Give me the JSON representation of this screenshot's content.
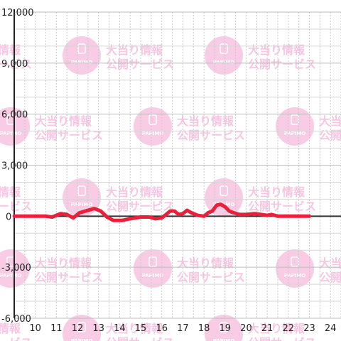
{
  "chart_data": {
    "type": "line",
    "title": "",
    "xlabel": "",
    "ylabel": "",
    "ylim": [
      -6000,
      12000
    ],
    "xlim": [
      9.0,
      24.5
    ],
    "y_ticks": [
      -6000,
      -3000,
      0,
      3000,
      6000,
      9000,
      12000
    ],
    "y_tick_labels": [
      "-6,000",
      "-3,000",
      "0",
      "3,000",
      "6,000",
      "9,000",
      "12,000"
    ],
    "x_ticks": [
      10,
      11,
      12,
      13,
      14,
      15,
      16,
      17,
      18,
      19,
      20,
      21,
      22,
      23,
      24
    ],
    "x_tick_labels": [
      "10",
      "11",
      "12",
      "13",
      "14",
      "15",
      "16",
      "17",
      "18",
      "19",
      "20",
      "21",
      "22",
      "23",
      "24"
    ],
    "grid": true,
    "legend": "none",
    "series": [
      {
        "color": "#e8203a",
        "x": [
          9.0,
          10.5,
          10.8,
          11.2,
          11.5,
          11.8,
          12.1,
          12.5,
          12.8,
          13.1,
          13.4,
          13.7,
          14.1,
          14.5,
          15.0,
          15.4,
          15.7,
          16.0,
          16.2,
          16.4,
          16.6,
          16.8,
          17.0,
          17.2,
          17.4,
          17.7,
          18.0,
          18.2,
          18.4,
          18.6,
          18.8,
          19.0,
          19.2,
          19.4,
          19.7,
          20.0,
          20.4,
          20.7,
          21.0,
          21.2,
          21.5,
          22.0,
          22.5,
          23.0
        ],
        "y": [
          0,
          0,
          -50,
          150,
          100,
          -100,
          200,
          350,
          450,
          300,
          -50,
          -250,
          -250,
          -150,
          -50,
          -50,
          -150,
          -100,
          100,
          300,
          300,
          100,
          150,
          350,
          200,
          50,
          0,
          200,
          300,
          650,
          700,
          550,
          300,
          200,
          100,
          100,
          150,
          100,
          50,
          100,
          0,
          0,
          0,
          0
        ]
      }
    ]
  },
  "watermark": {
    "logo": "PAPIMO",
    "line1": "大当り情報",
    "line2": "公開サービス"
  }
}
